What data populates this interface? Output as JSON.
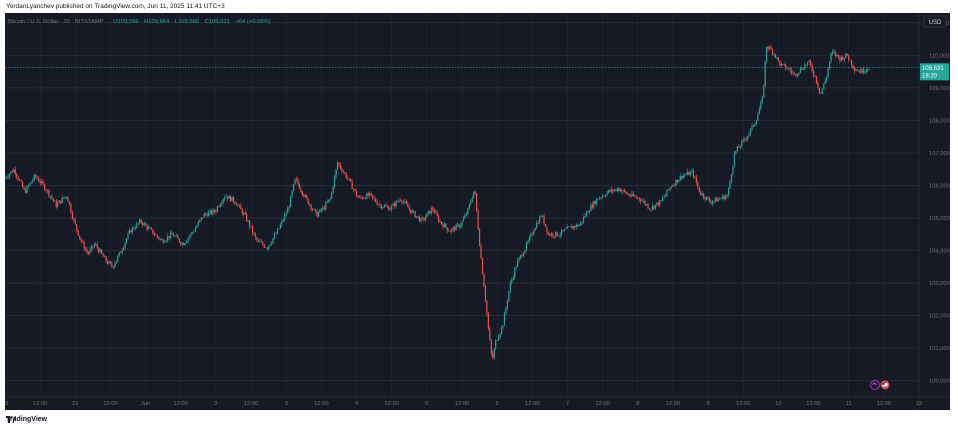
{
  "header": {
    "publisher_line": "YordanLyanchev published on TradingView.com, Jun 11, 2025 11:41 UTC+3"
  },
  "footer": {
    "brand": "TradingView"
  },
  "chart_data": {
    "type": "candlestick",
    "symbol_line": "Bitcoin / U.S. Dollar · 30 · BITSTAMP",
    "ohlc_text": {
      "open": "O109,566",
      "high": "H109,664",
      "low": "L109,566",
      "close": "C109,631",
      "change": "+64 (+0.06%)"
    },
    "currency": "USD",
    "price_tag": {
      "price": "109,631",
      "countdown": "18:20",
      "value": 109631
    },
    "ylim": [
      99500,
      111300
    ],
    "y_ticks": [
      {
        "label": "100,000",
        "value": 100000
      },
      {
        "label": "101,000",
        "value": 101000
      },
      {
        "label": "102,000",
        "value": 102000
      },
      {
        "label": "103,000",
        "value": 103000
      },
      {
        "label": "104,000",
        "value": 104000
      },
      {
        "label": "105,000",
        "value": 105000
      },
      {
        "label": "106,000",
        "value": 106000
      },
      {
        "label": "107,000",
        "value": 107000
      },
      {
        "label": "108,000",
        "value": 108000
      },
      {
        "label": "109,000",
        "value": 109000
      },
      {
        "label": "110,000",
        "value": 110000
      },
      {
        "label": "111,000",
        "value": 111000
      }
    ],
    "x_ticks": [
      "20",
      "12:00",
      "21",
      "12:00",
      "Jun",
      "12:00",
      "2",
      "12:00",
      "3",
      "12:00",
      "4",
      "12:00",
      "5",
      "12:00",
      "6",
      "12:00",
      "7",
      "12:00",
      "8",
      "12:00",
      "9",
      "12:00",
      "10",
      "12:00",
      "11",
      "12:00",
      "12"
    ],
    "x_tick_unit": "days from May 20 00:00",
    "x_tick_days": [
      0,
      0.5,
      1,
      1.5,
      2,
      2.5,
      3,
      3.5,
      4,
      4.5,
      5,
      5.5,
      6,
      6.5,
      7,
      7.5,
      8,
      8.5,
      9,
      9.5,
      10,
      10.5,
      11,
      11.5,
      12,
      12.5,
      13
    ],
    "xlim": [
      0,
      13
    ],
    "price_path": [
      [
        0.0,
        106200
      ],
      [
        0.15,
        106500
      ],
      [
        0.3,
        105800
      ],
      [
        0.45,
        106300
      ],
      [
        0.6,
        105900
      ],
      [
        0.75,
        105400
      ],
      [
        0.9,
        105700
      ],
      [
        1.0,
        104900
      ],
      [
        1.1,
        104300
      ],
      [
        1.2,
        103900
      ],
      [
        1.3,
        104200
      ],
      [
        1.45,
        103700
      ],
      [
        1.55,
        103500
      ],
      [
        1.65,
        103900
      ],
      [
        1.8,
        104600
      ],
      [
        1.95,
        104900
      ],
      [
        2.1,
        104600
      ],
      [
        2.25,
        104300
      ],
      [
        2.4,
        104500
      ],
      [
        2.55,
        104200
      ],
      [
        2.7,
        104600
      ],
      [
        2.85,
        105100
      ],
      [
        3.0,
        105200
      ],
      [
        3.15,
        105700
      ],
      [
        3.3,
        105500
      ],
      [
        3.45,
        105000
      ],
      [
        3.6,
        104300
      ],
      [
        3.75,
        104100
      ],
      [
        3.9,
        104600
      ],
      [
        4.05,
        105300
      ],
      [
        4.15,
        106200
      ],
      [
        4.3,
        105600
      ],
      [
        4.45,
        105100
      ],
      [
        4.55,
        105300
      ],
      [
        4.65,
        105600
      ],
      [
        4.75,
        106700
      ],
      [
        4.9,
        106200
      ],
      [
        5.05,
        105600
      ],
      [
        5.2,
        105700
      ],
      [
        5.35,
        105400
      ],
      [
        5.5,
        105300
      ],
      [
        5.65,
        105600
      ],
      [
        5.8,
        105200
      ],
      [
        5.95,
        104900
      ],
      [
        6.1,
        105300
      ],
      [
        6.2,
        104900
      ],
      [
        6.35,
        104600
      ],
      [
        6.5,
        104800
      ],
      [
        6.6,
        105200
      ],
      [
        6.7,
        105900
      ],
      [
        6.78,
        104000
      ],
      [
        6.85,
        102600
      ],
      [
        6.9,
        101500
      ],
      [
        6.95,
        100600
      ],
      [
        7.0,
        101200
      ],
      [
        7.1,
        101700
      ],
      [
        7.2,
        102900
      ],
      [
        7.3,
        103600
      ],
      [
        7.45,
        104200
      ],
      [
        7.55,
        104700
      ],
      [
        7.65,
        105100
      ],
      [
        7.75,
        104500
      ],
      [
        7.9,
        104500
      ],
      [
        8.05,
        104700
      ],
      [
        8.2,
        104800
      ],
      [
        8.3,
        105200
      ],
      [
        8.45,
        105600
      ],
      [
        8.6,
        105800
      ],
      [
        8.75,
        105900
      ],
      [
        8.9,
        105700
      ],
      [
        9.05,
        105600
      ],
      [
        9.2,
        105300
      ],
      [
        9.35,
        105500
      ],
      [
        9.5,
        106000
      ],
      [
        9.65,
        106300
      ],
      [
        9.8,
        106400
      ],
      [
        9.9,
        105800
      ],
      [
        10.05,
        105500
      ],
      [
        10.2,
        105600
      ],
      [
        10.3,
        105700
      ],
      [
        10.4,
        107000
      ],
      [
        10.5,
        107300
      ],
      [
        10.6,
        107600
      ],
      [
        10.7,
        108000
      ],
      [
        10.8,
        108700
      ],
      [
        10.85,
        110300
      ],
      [
        10.95,
        110100
      ],
      [
        11.05,
        109700
      ],
      [
        11.15,
        109600
      ],
      [
        11.25,
        109400
      ],
      [
        11.35,
        109600
      ],
      [
        11.45,
        109800
      ],
      [
        11.55,
        109300
      ],
      [
        11.62,
        108800
      ],
      [
        11.7,
        109300
      ],
      [
        11.78,
        110100
      ],
      [
        11.9,
        109900
      ],
      [
        12.0,
        110000
      ],
      [
        12.1,
        109600
      ],
      [
        12.2,
        109500
      ],
      [
        12.3,
        109631
      ]
    ],
    "grid": true
  }
}
